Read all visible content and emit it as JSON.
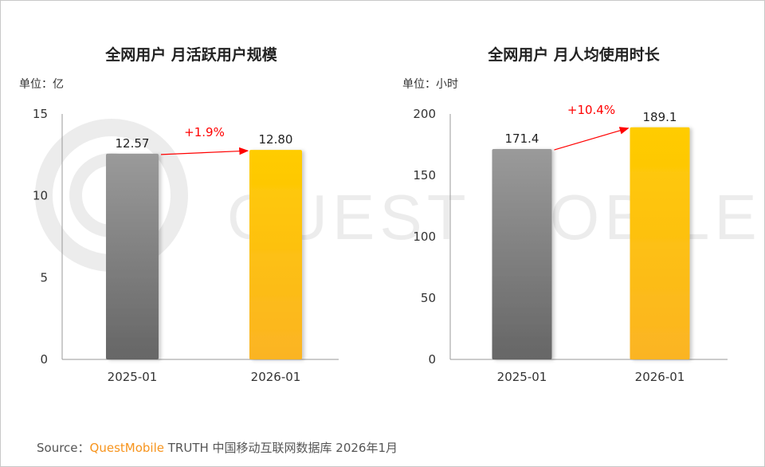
{
  "watermark": "QUEST MOBILE",
  "source": {
    "label": "Source：",
    "brand": "QuestMobile",
    "text": " TRUTH 中国移动互联网数据库 2026年1月"
  },
  "colors": {
    "bar_2025": "#8c8c8c",
    "bar_2026": "#ffc000",
    "change": "#ff0000"
  },
  "chart_data": [
    {
      "type": "bar",
      "title": "全网用户 月活跃用户规模",
      "unit": "单位：亿",
      "categories": [
        "2025-01",
        "2026-01"
      ],
      "values": [
        12.57,
        12.8
      ],
      "value_labels": [
        "12.57",
        "12.80"
      ],
      "ylim": [
        0,
        15
      ],
      "yticks": [
        0,
        5,
        10,
        15
      ],
      "change_label": "+1.9%",
      "grid": false
    },
    {
      "type": "bar",
      "title": "全网用户 月人均使用时长",
      "unit": "单位：小时",
      "categories": [
        "2025-01",
        "2026-01"
      ],
      "values": [
        171.4,
        189.1
      ],
      "value_labels": [
        "171.4",
        "189.1"
      ],
      "ylim": [
        0,
        200
      ],
      "yticks": [
        0,
        50,
        100,
        150,
        200
      ],
      "change_label": "+10.4%",
      "grid": false
    }
  ]
}
